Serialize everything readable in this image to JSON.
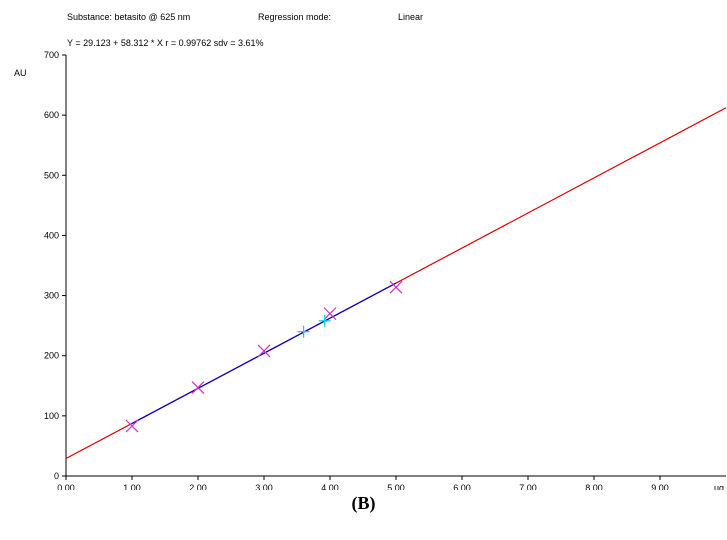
{
  "header": {
    "substance": "Substance: betasito @ 625 nm",
    "regression_label": "Regression mode:",
    "regression_mode": "Linear",
    "equation": "Y = 29.123 + 58.312 * X   r = 0.99762     sdv = 3.61%"
  },
  "caption": "(B)",
  "chart_data": {
    "type": "scatter",
    "title": "",
    "xlabel": "ug",
    "ylabel": "AU",
    "xlim": [
      0,
      10
    ],
    "ylim": [
      0,
      700
    ],
    "grid": false,
    "x_ticks": [
      "0.00",
      "1.00",
      "2.00",
      "3.00",
      "4.00",
      "5.00",
      "6.00",
      "7.00",
      "8.00",
      "9.00"
    ],
    "y_ticks": [
      "0",
      "100",
      "200",
      "300",
      "400",
      "500",
      "600",
      "700"
    ],
    "regression": {
      "intercept": 29.123,
      "slope": 58.312,
      "fit_range": [
        1,
        5
      ],
      "extrapolation_range": [
        0,
        10
      ],
      "fit_color": "#0000cc",
      "extrapolation_color": "#dd0000"
    },
    "series": [
      {
        "marker": "x",
        "color": "#cc33cc",
        "points": [
          [
            1.0,
            83
          ],
          [
            2.0,
            147
          ],
          [
            3.0,
            208
          ],
          [
            4.0,
            270
          ],
          [
            5.0,
            314
          ]
        ]
      },
      {
        "marker": "+",
        "color": "#00ccee",
        "points": [
          [
            3.6,
            240
          ],
          [
            3.92,
            258
          ]
        ]
      }
    ]
  }
}
